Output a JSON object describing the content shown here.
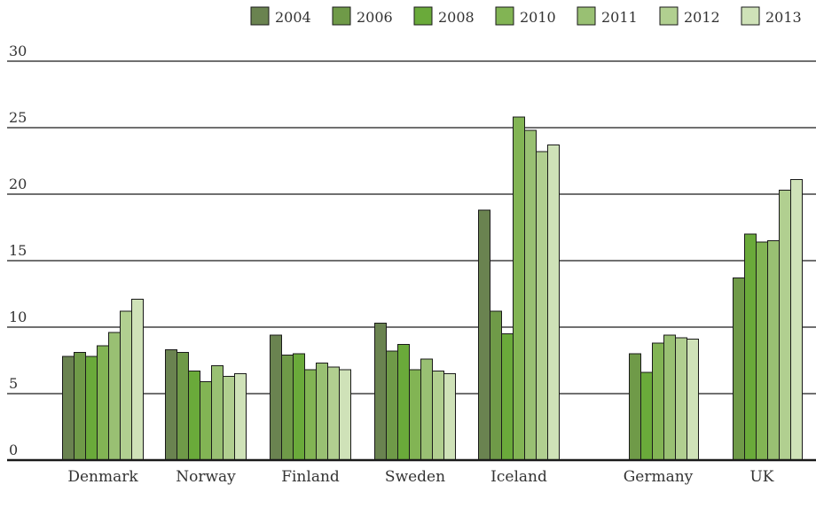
{
  "chart_data": {
    "type": "bar",
    "title": "",
    "xlabel": "",
    "ylabel": "",
    "ylim": [
      0,
      30
    ],
    "yticks": [
      0,
      5,
      10,
      15,
      20,
      25,
      30
    ],
    "grid": true,
    "legend_position": "top-right",
    "categories": [
      "Denmark",
      "Norway",
      "Finland",
      "Sweden",
      "Iceland",
      "Germany",
      "UK"
    ],
    "series": [
      {
        "name": "2004",
        "color": "#6a8350",
        "values": [
          7.8,
          8.3,
          9.4,
          10.3,
          18.8,
          null,
          null
        ]
      },
      {
        "name": "2006",
        "color": "#6f9a48",
        "values": [
          8.1,
          8.1,
          7.9,
          8.2,
          11.2,
          8.0,
          13.7
        ]
      },
      {
        "name": "2008",
        "color": "#6aaa3a",
        "values": [
          7.8,
          6.7,
          8.0,
          8.7,
          9.5,
          6.6,
          17.0
        ]
      },
      {
        "name": "2010",
        "color": "#82b454",
        "values": [
          8.6,
          5.9,
          6.8,
          6.8,
          25.8,
          8.8,
          16.4
        ]
      },
      {
        "name": "2011",
        "color": "#99c073",
        "values": [
          9.6,
          7.1,
          7.3,
          7.6,
          24.8,
          9.4,
          16.5
        ]
      },
      {
        "name": "2012",
        "color": "#b1cf90",
        "values": [
          11.2,
          6.3,
          7.0,
          6.7,
          23.2,
          9.2,
          20.3
        ]
      },
      {
        "name": "2013",
        "color": "#cfe2b8",
        "values": [
          12.1,
          6.5,
          6.8,
          6.5,
          23.7,
          9.1,
          21.1
        ]
      }
    ]
  }
}
